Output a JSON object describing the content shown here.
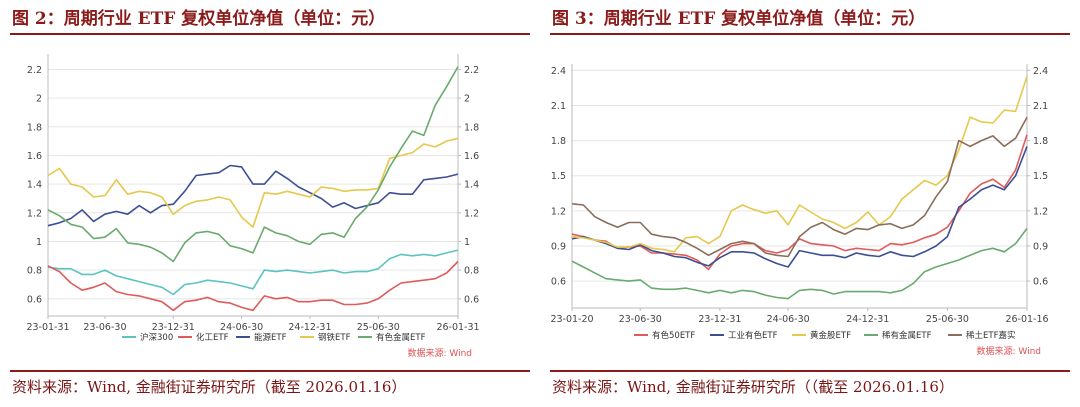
{
  "panels": [
    {
      "title": "图 2：周期行业 ETF 复权单位净值（单位：元）",
      "source": "资料来源：Wind, 金融街证券研究所（截至 2026.01.16）",
      "watermark": "数据来源: Wind"
    },
    {
      "title": "图 3：周期行业 ETF 复权单位净值（单位：元）",
      "source": "资料来源：Wind, 金融街证券研究所（（截至 2026.01.16）",
      "watermark": "数据来源: Wind"
    }
  ],
  "chart_data": [
    {
      "type": "line",
      "x_tick_labels": [
        "23-01-31",
        "23-06-30",
        "23-12-31",
        "24-06-30",
        "24-12-31",
        "25-06-30",
        "26-01-31"
      ],
      "x_tick_positions": [
        0,
        5,
        11,
        17,
        23,
        29,
        36
      ],
      "ylim": [
        0.48,
        2.28
      ],
      "y_ticks": [
        0.6,
        0.8,
        1,
        1.2,
        1.4,
        1.6,
        1.8,
        2,
        2.2
      ],
      "y_tick_labels": [
        "0.6",
        "0.8",
        "1",
        "1.2",
        "1.4",
        "1.6",
        "1.8",
        "2",
        "2.2"
      ],
      "grid": true,
      "legend_position": "bottom",
      "series": [
        {
          "name": "沪深300",
          "color": "#5bc4c0",
          "values": [
            0.82,
            0.81,
            0.81,
            0.77,
            0.77,
            0.8,
            0.76,
            0.74,
            0.72,
            0.7,
            0.68,
            0.63,
            0.7,
            0.71,
            0.73,
            0.72,
            0.71,
            0.69,
            0.67,
            0.8,
            0.79,
            0.8,
            0.79,
            0.78,
            0.79,
            0.8,
            0.78,
            0.79,
            0.79,
            0.81,
            0.88,
            0.91,
            0.9,
            0.91,
            0.9,
            0.92,
            0.94
          ]
        },
        {
          "name": "化工ETF",
          "color": "#e05b5b",
          "values": [
            0.83,
            0.79,
            0.71,
            0.66,
            0.68,
            0.71,
            0.65,
            0.63,
            0.62,
            0.6,
            0.58,
            0.52,
            0.58,
            0.59,
            0.61,
            0.58,
            0.57,
            0.54,
            0.52,
            0.62,
            0.6,
            0.61,
            0.58,
            0.58,
            0.59,
            0.59,
            0.56,
            0.56,
            0.57,
            0.6,
            0.66,
            0.71,
            0.72,
            0.73,
            0.74,
            0.78,
            0.86
          ]
        },
        {
          "name": "能源ETF",
          "color": "#3c4f95",
          "values": [
            1.11,
            1.13,
            1.16,
            1.22,
            1.14,
            1.19,
            1.21,
            1.19,
            1.25,
            1.2,
            1.25,
            1.26,
            1.35,
            1.46,
            1.47,
            1.48,
            1.53,
            1.52,
            1.4,
            1.4,
            1.49,
            1.44,
            1.38,
            1.34,
            1.3,
            1.24,
            1.27,
            1.23,
            1.25,
            1.27,
            1.34,
            1.33,
            1.33,
            1.43,
            1.44,
            1.45,
            1.47
          ]
        },
        {
          "name": "钢铁ETF",
          "color": "#e6c84c",
          "values": [
            1.46,
            1.51,
            1.4,
            1.38,
            1.31,
            1.32,
            1.43,
            1.33,
            1.35,
            1.34,
            1.31,
            1.19,
            1.25,
            1.28,
            1.29,
            1.31,
            1.29,
            1.17,
            1.1,
            1.34,
            1.33,
            1.35,
            1.33,
            1.31,
            1.38,
            1.37,
            1.35,
            1.36,
            1.36,
            1.37,
            1.58,
            1.6,
            1.62,
            1.68,
            1.66,
            1.7,
            1.72
          ]
        },
        {
          "name": "有色金属ETF",
          "color": "#6aaa6e",
          "values": [
            1.22,
            1.18,
            1.12,
            1.1,
            1.02,
            1.03,
            1.09,
            0.99,
            0.98,
            0.96,
            0.92,
            0.86,
            0.99,
            1.06,
            1.07,
            1.05,
            0.97,
            0.95,
            0.92,
            1.1,
            1.06,
            1.04,
            1.0,
            0.98,
            1.05,
            1.06,
            1.03,
            1.16,
            1.24,
            1.36,
            1.52,
            1.65,
            1.77,
            1.74,
            1.95,
            2.08,
            2.22
          ]
        }
      ]
    },
    {
      "type": "line",
      "x_tick_labels": [
        "23-01-20",
        "23-06-30",
        "23-12-31",
        "24-06-30",
        "24-12-31",
        "25-06-30",
        "26-01-16"
      ],
      "x_tick_positions": [
        0,
        6,
        13,
        19,
        26,
        33,
        40
      ],
      "ylim": [
        0.37,
        2.42
      ],
      "y_ticks": [
        0.6,
        0.9,
        1.2,
        1.5,
        1.8,
        2.1,
        2.4
      ],
      "y_tick_labels": [
        "0.6",
        "0.9",
        "1.2",
        "1.5",
        "1.8",
        "2.1",
        "2.4"
      ],
      "grid": true,
      "legend_position": "bottom",
      "series": [
        {
          "name": "有色50ETF",
          "color": "#e05b5b",
          "values": [
            1.0,
            0.98,
            0.95,
            0.94,
            0.88,
            0.89,
            0.9,
            0.84,
            0.84,
            0.83,
            0.82,
            0.78,
            0.7,
            0.83,
            0.9,
            0.92,
            0.92,
            0.86,
            0.84,
            0.87,
            0.96,
            0.92,
            0.91,
            0.9,
            0.86,
            0.88,
            0.87,
            0.86,
            0.92,
            0.91,
            0.93,
            0.97,
            1.0,
            1.06,
            1.2,
            1.35,
            1.43,
            1.47,
            1.4,
            1.55,
            1.85
          ]
        },
        {
          "name": "工业有色ETF",
          "color": "#3c4f95",
          "values": [
            0.96,
            0.98,
            0.95,
            0.92,
            0.88,
            0.87,
            0.91,
            0.86,
            0.84,
            0.81,
            0.8,
            0.76,
            0.73,
            0.8,
            0.85,
            0.85,
            0.84,
            0.79,
            0.75,
            0.72,
            0.86,
            0.84,
            0.82,
            0.82,
            0.8,
            0.84,
            0.82,
            0.81,
            0.85,
            0.82,
            0.81,
            0.85,
            0.9,
            0.98,
            1.23,
            1.3,
            1.38,
            1.42,
            1.38,
            1.5,
            1.75
          ]
        },
        {
          "name": "黄金股ETF",
          "color": "#e6c84c",
          "values": [
            0.98,
            0.97,
            0.95,
            0.93,
            0.89,
            0.89,
            0.92,
            0.88,
            0.87,
            0.85,
            0.97,
            0.98,
            0.92,
            0.98,
            1.2,
            1.25,
            1.21,
            1.18,
            1.2,
            1.08,
            1.25,
            1.19,
            1.13,
            1.1,
            1.05,
            1.1,
            1.19,
            1.08,
            1.15,
            1.3,
            1.38,
            1.46,
            1.42,
            1.5,
            1.72,
            2.0,
            1.96,
            1.95,
            2.06,
            2.05,
            2.35
          ]
        },
        {
          "name": "稀有金属ETF",
          "color": "#6aaa6e",
          "values": [
            0.77,
            0.72,
            0.67,
            0.62,
            0.61,
            0.6,
            0.61,
            0.54,
            0.53,
            0.53,
            0.54,
            0.52,
            0.5,
            0.52,
            0.5,
            0.52,
            0.51,
            0.48,
            0.46,
            0.45,
            0.52,
            0.53,
            0.52,
            0.49,
            0.51,
            0.51,
            0.51,
            0.51,
            0.5,
            0.52,
            0.58,
            0.68,
            0.72,
            0.75,
            0.78,
            0.82,
            0.86,
            0.88,
            0.85,
            0.92,
            1.05
          ]
        },
        {
          "name": "稀土ETF嘉实",
          "color": "#8a6d5a",
          "values": [
            1.26,
            1.25,
            1.15,
            1.1,
            1.06,
            1.1,
            1.1,
            1.0,
            0.98,
            0.97,
            0.93,
            0.88,
            0.82,
            0.87,
            0.92,
            0.94,
            0.92,
            0.84,
            0.82,
            0.81,
            0.98,
            1.06,
            1.1,
            1.04,
            1.0,
            1.05,
            1.04,
            1.08,
            1.09,
            1.05,
            1.08,
            1.16,
            1.32,
            1.45,
            1.8,
            1.75,
            1.8,
            1.84,
            1.75,
            1.82,
            2.0
          ]
        }
      ]
    }
  ]
}
